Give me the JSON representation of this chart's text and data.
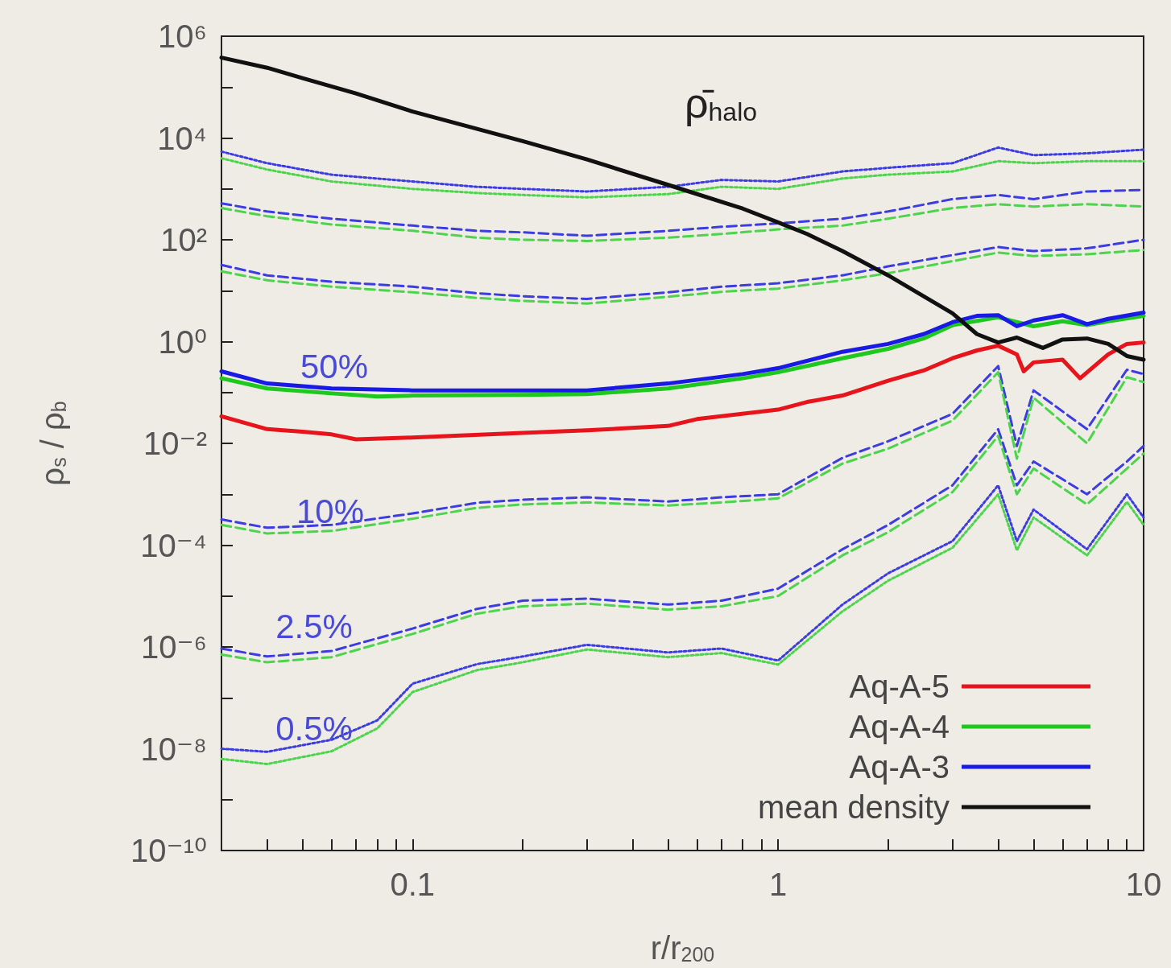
{
  "chart_data": {
    "type": "line",
    "xlabel": "r/r$_{200}$",
    "ylabel": "ρ$_{s}$ / ρ$_{b}$",
    "log": "xy",
    "grid": false,
    "legend": "bottom right",
    "marker": "none",
    "xlim": [
      0.03,
      10
    ],
    "ylim": [
      1e-10,
      1000000.0
    ],
    "xticks": [
      {
        "value": 0.04,
        "label": null
      },
      {
        "value": 0.05,
        "label": null
      },
      {
        "value": 0.06,
        "label": null
      },
      {
        "value": 0.07,
        "label": null
      },
      {
        "value": 0.08,
        "label": null
      },
      {
        "value": 0.09,
        "label": null
      },
      0.1,
      {
        "value": 0.2,
        "label": null
      },
      {
        "value": 0.3,
        "label": null
      },
      {
        "value": 0.4,
        "label": null
      },
      {
        "value": 0.5,
        "label": null
      },
      {
        "value": 0.6,
        "label": null
      },
      {
        "value": 0.7,
        "label": null
      },
      {
        "value": 0.8,
        "label": null
      },
      {
        "value": 0.9,
        "label": null
      },
      1,
      {
        "value": 2,
        "label": null
      },
      {
        "value": 3,
        "label": null
      },
      {
        "value": 4,
        "label": null
      },
      {
        "value": 5,
        "label": null
      },
      {
        "value": 6,
        "label": null
      },
      {
        "value": 7,
        "label": null
      },
      {
        "value": 8,
        "label": null
      },
      {
        "value": 9,
        "label": null
      },
      10
    ],
    "yticks": [
      {
        "value": 1e-10,
        "label": "10⁻¹⁰"
      },
      {
        "value": 1e-09,
        "label": null
      },
      {
        "value": 1e-08,
        "label": "10⁻⁸"
      },
      {
        "value": 1e-07,
        "label": null
      },
      {
        "value": 1e-06,
        "label": "10⁻⁶"
      },
      {
        "value": 1e-05,
        "label": null
      },
      {
        "value": 0.0001,
        "label": "10⁻⁴"
      },
      {
        "value": 0.001,
        "label": null
      },
      {
        "value": 0.01,
        "label": "10⁻²"
      },
      {
        "value": 0.1,
        "label": null
      },
      {
        "value": 1,
        "label": "10⁰"
      },
      {
        "value": 10,
        "label": null
      },
      {
        "value": 100,
        "label": "10²"
      },
      {
        "value": 1000,
        "label": null
      },
      {
        "value": 10000,
        "label": "10⁴"
      },
      {
        "value": 100000,
        "label": null
      },
      {
        "value": 1000000,
        "label": "10⁶"
      }
    ],
    "annotations": [
      "ρ̄$_{halo}$",
      "50%",
      "10%",
      "2.5%",
      "0.5%"
    ],
    "series": [
      {
        "color": "#3c3ce0",
        "line_style": "dotted",
        "x": [
          0.03,
          0.04,
          0.06,
          0.1,
          0.15,
          0.2,
          0.3,
          0.5,
          0.7,
          1,
          1.5,
          2,
          3,
          4,
          5,
          7,
          10
        ],
        "values": [
          5400.0,
          3200.0,
          1900.0,
          1400.0,
          1100.0,
          1000.0,
          890.0,
          1100.0,
          1500.0,
          1400.0,
          2200.0,
          2600.0,
          3200.0,
          6500.0,
          4600.0,
          5000.0,
          5900.0
        ]
      },
      {
        "color": "#4cd44c",
        "line_style": "dotted",
        "x": [
          0.03,
          0.04,
          0.06,
          0.1,
          0.15,
          0.2,
          0.3,
          0.5,
          0.7,
          1,
          1.5,
          2,
          3,
          4,
          5,
          7,
          10
        ],
        "values": [
          4000.0,
          2400.0,
          1400.0,
          1000.0,
          830.0,
          760.0,
          680.0,
          790.0,
          1100.0,
          1000.0,
          1600.0,
          1900.0,
          2200.0,
          3500.0,
          3200.0,
          3500.0,
          3500.0
        ]
      },
      {
        "color": "#3c3ce0",
        "line_style": "dashed",
        "x": [
          0.03,
          0.04,
          0.06,
          0.1,
          0.15,
          0.2,
          0.3,
          0.5,
          0.7,
          1,
          1.5,
          2,
          3,
          4,
          5,
          7,
          10
        ],
        "values": [
          520.0,
          360.0,
          260.0,
          190.0,
          150.0,
          140.0,
          120.0,
          150.0,
          180.0,
          210.0,
          260.0,
          360.0,
          630.0,
          760.0,
          630.0,
          890.0,
          950.0
        ]
      },
      {
        "color": "#4cd44c",
        "line_style": "dashed",
        "x": [
          0.03,
          0.04,
          0.06,
          0.1,
          0.15,
          0.2,
          0.3,
          0.5,
          0.7,
          1,
          1.5,
          2,
          3,
          4,
          5,
          7,
          10
        ],
        "values": [
          420.0,
          290.0,
          200.0,
          150.0,
          110.0,
          100.0,
          95,
          110.0,
          130.0,
          160.0,
          190.0,
          260.0,
          420.0,
          500.0,
          450.0,
          500.0,
          450.0
        ]
      },
      {
        "color": "#3c3ce0",
        "line_style": "dashed",
        "x": [
          0.03,
          0.04,
          0.06,
          0.1,
          0.15,
          0.2,
          0.3,
          0.5,
          0.7,
          1,
          1.5,
          2,
          3,
          4,
          5,
          7,
          10
        ],
        "values": [
          32,
          20,
          15,
          12,
          8.9,
          7.8,
          6.9,
          9.3,
          12,
          14,
          20,
          30,
          50,
          72,
          60,
          68,
          100
        ]
      },
      {
        "color": "#4cd44c",
        "line_style": "dashed",
        "x": [
          0.03,
          0.04,
          0.06,
          0.1,
          0.15,
          0.2,
          0.3,
          0.5,
          0.7,
          1,
          1.5,
          2,
          3,
          4,
          5,
          7,
          10
        ],
        "values": [
          24,
          16,
          12,
          9.3,
          7.2,
          6.3,
          5.6,
          7.6,
          9.5,
          11,
          16,
          22,
          38,
          56,
          48,
          52,
          63
        ]
      },
      {
        "color": "#3c3ce0",
        "line_style": "dashed",
        "x": [
          0.03,
          0.04,
          0.06,
          0.1,
          0.15,
          0.2,
          0.3,
          0.5,
          0.7,
          1,
          1.5,
          2,
          3,
          4,
          4.5,
          5,
          7,
          9,
          10
        ],
        "values": [
          0.00032,
          0.00022,
          0.00025,
          0.00042,
          0.00068,
          0.00078,
          0.00087,
          0.00072,
          0.00087,
          0.001,
          0.0052,
          0.011,
          0.038,
          0.33,
          0.0089,
          0.11,
          0.019,
          0.28,
          0.23
        ]
      },
      {
        "color": "#4cd44c",
        "line_style": "dashed",
        "x": [
          0.03,
          0.04,
          0.06,
          0.1,
          0.15,
          0.2,
          0.3,
          0.5,
          0.7,
          1,
          1.5,
          2,
          3,
          4,
          4.5,
          5,
          7,
          9,
          10
        ],
        "values": [
          0.00025,
          0.00017,
          0.00019,
          0.00033,
          0.00054,
          0.00063,
          0.00069,
          0.0006,
          0.00069,
          0.00083,
          0.004,
          0.0079,
          0.028,
          0.25,
          0.005,
          0.079,
          0.01,
          0.2,
          0.16
        ]
      },
      {
        "color": "#3c3ce0",
        "line_style": "dashed",
        "x": [
          0.03,
          0.04,
          0.06,
          0.1,
          0.15,
          0.2,
          0.3,
          0.5,
          0.7,
          1,
          1.5,
          2,
          3,
          4,
          4.5,
          5,
          7,
          9,
          10
        ],
        "values": [
          9.3e-07,
          6.5e-07,
          8.3e-07,
          2.3e-06,
          5.6e-06,
          8.1e-06,
          8.9e-06,
          6.8e-06,
          8.1e-06,
          1.4e-05,
          8.3e-05,
          0.00025,
          0.0015,
          0.019,
          0.0015,
          0.0044,
          0.001,
          0.0044,
          0.0089
        ]
      },
      {
        "color": "#4cd44c",
        "line_style": "dashed",
        "x": [
          0.03,
          0.04,
          0.06,
          0.1,
          0.15,
          0.2,
          0.3,
          0.5,
          0.7,
          1,
          1.5,
          2,
          3,
          4,
          4.5,
          5,
          7,
          9,
          10
        ],
        "values": [
          7.1e-07,
          5e-07,
          6.3e-07,
          1.8e-06,
          4.5e-06,
          6.3e-06,
          7.1e-06,
          5.4e-06,
          6.3e-06,
          1e-05,
          6.3e-05,
          0.00018,
          0.0011,
          0.014,
          0.001,
          0.0032,
          0.00063,
          0.0032,
          0.0063
        ]
      },
      {
        "color": "#3c3ce0",
        "line_style": "dotted",
        "x": [
          0.03,
          0.04,
          0.06,
          0.08,
          0.1,
          0.15,
          0.2,
          0.3,
          0.5,
          0.7,
          1,
          1.5,
          2,
          3,
          4,
          4.5,
          5,
          7,
          9,
          10
        ],
        "values": [
          1e-08,
          8.7e-09,
          1.5e-08,
          3.6e-08,
          1.9e-07,
          4.6e-07,
          6.5e-07,
          1.1e-06,
          7.8e-07,
          9.3e-07,
          5.4e-07,
          6.8e-06,
          2.8e-05,
          0.00012,
          0.0015,
          0.00012,
          0.0005,
          8.3e-05,
          0.001,
          0.00035
        ]
      },
      {
        "color": "#4cd44c",
        "line_style": "dotted",
        "x": [
          0.03,
          0.04,
          0.06,
          0.08,
          0.1,
          0.15,
          0.2,
          0.3,
          0.5,
          0.7,
          1,
          1.5,
          2,
          3,
          4,
          4.5,
          5,
          7,
          9,
          10
        ],
        "values": [
          6.3e-09,
          5e-09,
          8.9e-09,
          2.5e-08,
          1.3e-07,
          3.5e-07,
          5e-07,
          8.9e-07,
          6.3e-07,
          7.6e-07,
          4.5e-07,
          5e-06,
          2e-05,
          8.9e-05,
          0.001,
          7.9e-05,
          0.00035,
          6.3e-05,
          0.00071,
          0.00025
        ]
      },
      {
        "name": "Aq-A-5",
        "color": "#e8141c",
        "line_style": "solid",
        "x": [
          0.03,
          0.04,
          0.05,
          0.06,
          0.07,
          0.1,
          0.2,
          0.3,
          0.5,
          0.6,
          1,
          1.2,
          1.5,
          2,
          2.5,
          3,
          3.5,
          4,
          4.5,
          4.7,
          5,
          6,
          6.7,
          8,
          9,
          10
        ],
        "values": [
          0.034,
          0.019,
          0.017,
          0.015,
          0.012,
          0.013,
          0.016,
          0.018,
          0.022,
          0.03,
          0.046,
          0.065,
          0.087,
          0.17,
          0.27,
          0.47,
          0.67,
          0.83,
          0.56,
          0.26,
          0.39,
          0.44,
          0.19,
          0.56,
          0.9,
          0.96
        ]
      },
      {
        "name": "Aq-A-4",
        "color": "#1ec81e",
        "line_style": "solid",
        "x": [
          0.03,
          0.04,
          0.06,
          0.08,
          0.1,
          0.2,
          0.3,
          0.5,
          0.8,
          1,
          1.5,
          2,
          2.5,
          3,
          4,
          5,
          6,
          7,
          8,
          10
        ],
        "values": [
          0.19,
          0.12,
          0.096,
          0.083,
          0.087,
          0.09,
          0.093,
          0.12,
          0.19,
          0.25,
          0.47,
          0.72,
          1.15,
          2.1,
          3.0,
          2.0,
          2.5,
          2.1,
          2.5,
          3.2
        ]
      },
      {
        "name": "Aq-A-3",
        "color": "#1a1ae6",
        "line_style": "solid",
        "x": [
          0.03,
          0.04,
          0.06,
          0.1,
          0.2,
          0.3,
          0.5,
          0.8,
          1,
          1.5,
          2,
          2.5,
          3,
          3.5,
          4,
          4.5,
          5,
          6,
          7,
          8,
          10
        ],
        "values": [
          0.26,
          0.15,
          0.12,
          0.11,
          0.11,
          0.11,
          0.15,
          0.23,
          0.3,
          0.63,
          0.9,
          1.4,
          2.4,
          3.2,
          3.3,
          2.0,
          2.6,
          3.3,
          2.2,
          2.8,
          3.7
        ]
      },
      {
        "name": "mean density",
        "color": "#111111",
        "line_style": "solid",
        "x": [
          0.03,
          0.04,
          0.05,
          0.07,
          0.1,
          0.2,
          0.3,
          0.5,
          0.8,
          1,
          1.2,
          1.5,
          2,
          2.5,
          3,
          3.5,
          4,
          4.5,
          5.3,
          6,
          7,
          8,
          9,
          10
        ],
        "values": [
          380000.0,
          240000.0,
          150000.0,
          75000.0,
          33000.0,
          8700.0,
          3800.0,
          1200.0,
          410.0,
          220.0,
          130.0,
          60,
          20,
          7.8,
          3.6,
          1.4,
          0.96,
          1.2,
          0.75,
          1.1,
          1.15,
          0.9,
          0.52,
          0.44
        ]
      }
    ]
  }
}
